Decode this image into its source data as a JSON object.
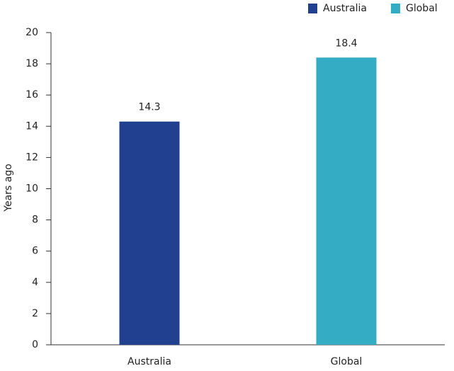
{
  "chart_data": {
    "type": "bar",
    "y_label": "Years ago",
    "categories": [
      "Australia",
      "Global"
    ],
    "series": [
      {
        "name": "Australia",
        "color": "#21408f",
        "values": [
          14.3,
          null
        ]
      },
      {
        "name": "Global",
        "color": "#34adc4",
        "values": [
          null,
          18.4
        ]
      }
    ],
    "ylim": [
      0,
      20
    ],
    "yticks": [
      0,
      2,
      4,
      6,
      8,
      10,
      12,
      14,
      16,
      18,
      20
    ],
    "grid": false,
    "legend": "top-right"
  }
}
